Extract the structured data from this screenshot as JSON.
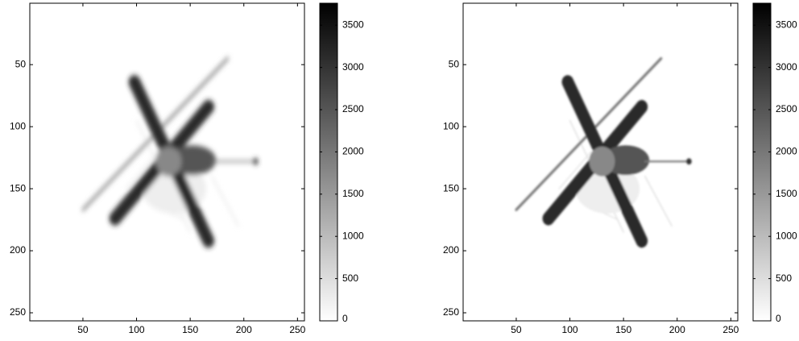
{
  "chart_data": [
    {
      "type": "image",
      "xlim": [
        0.5,
        256.5
      ],
      "ylim": [
        256.5,
        0.5
      ],
      "xticks": [
        50,
        100,
        150,
        200,
        250
      ],
      "yticks": [
        50,
        100,
        150,
        200,
        250
      ],
      "clim": [
        0,
        3760
      ],
      "cticks": [
        0,
        500,
        1000,
        1500,
        2000,
        2500,
        3000,
        3500
      ],
      "colormap": [
        "#ffffff",
        "#000000"
      ]
    },
    {
      "type": "image",
      "xlim": [
        0.5,
        256.5
      ],
      "ylim": [
        256.5,
        0.5
      ],
      "xticks": [
        50,
        100,
        150,
        200,
        250
      ],
      "yticks": [
        50,
        100,
        150,
        200,
        250
      ],
      "clim": [
        0,
        3760
      ],
      "cticks": [
        0,
        500,
        1000,
        1500,
        2000,
        2500,
        3000,
        3500
      ],
      "colormap": [
        "#ffffff",
        "#000000"
      ]
    }
  ]
}
